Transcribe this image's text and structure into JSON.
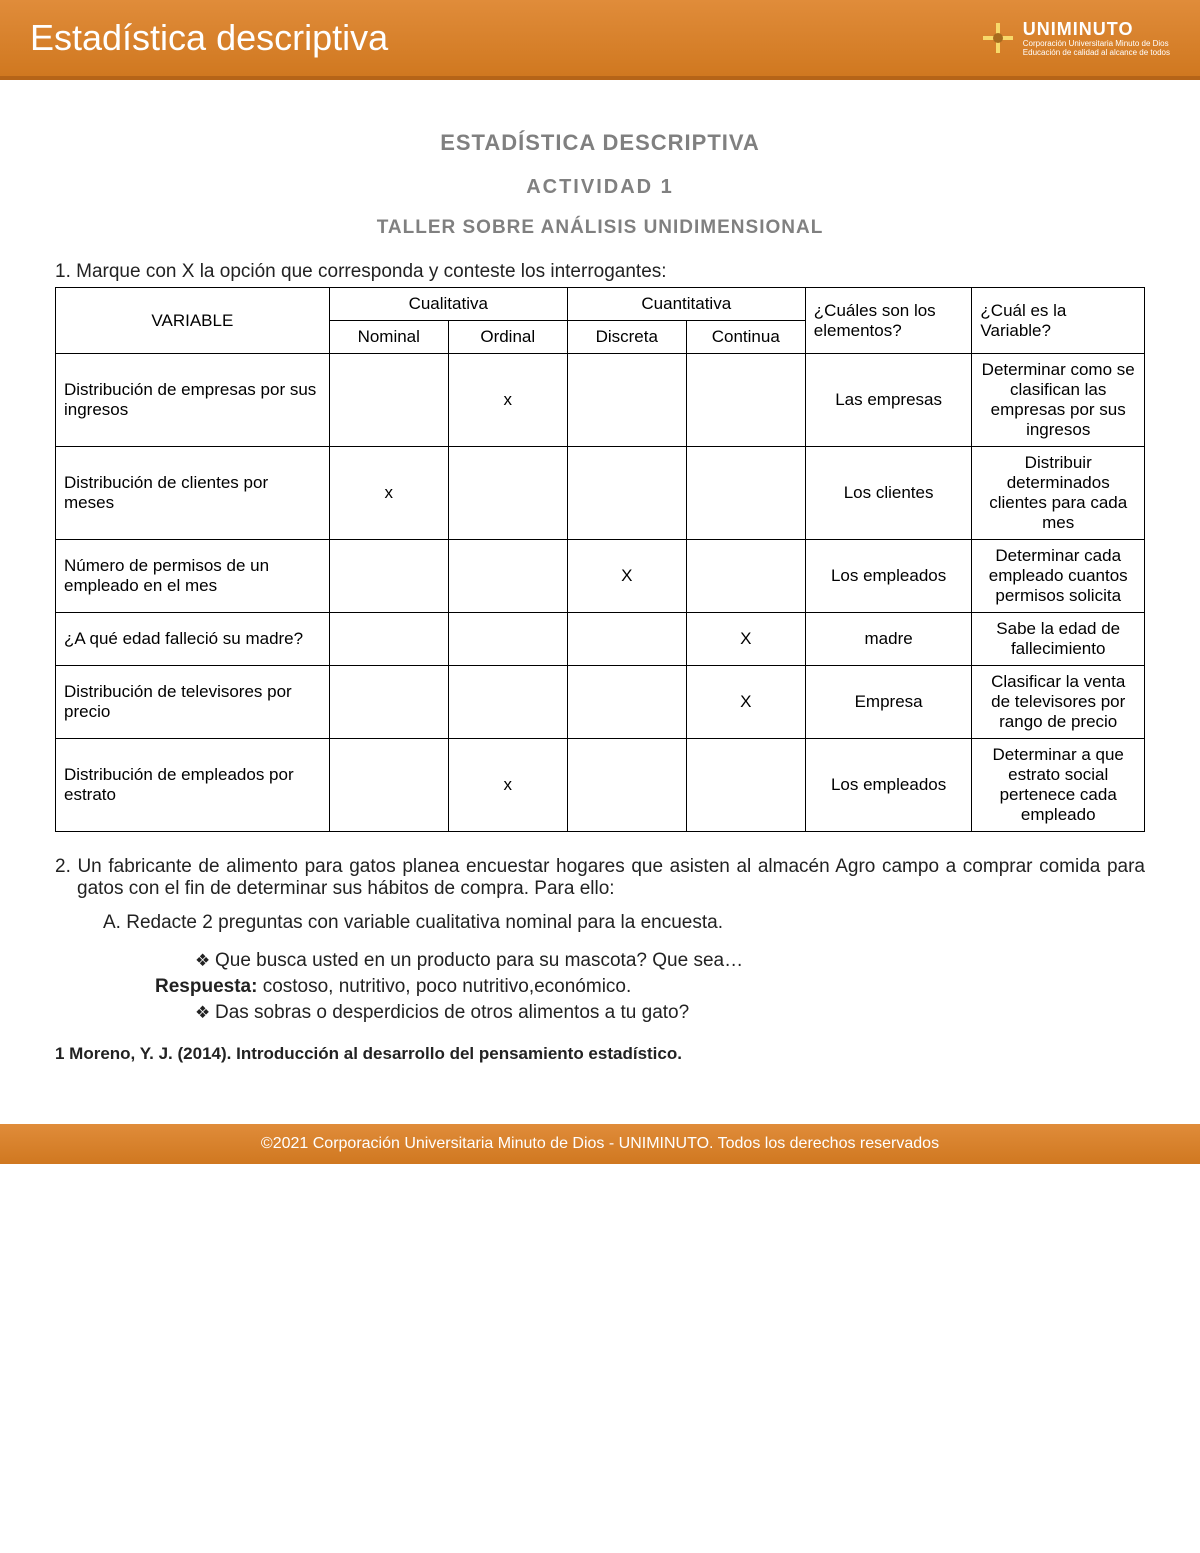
{
  "header": {
    "title": "Estadística descriptiva",
    "brand": "UNIMINUTO",
    "brand_sub1": "Corporación Universitaria Minuto de Dios",
    "brand_sub2": "Educación de calidad al alcance de todos"
  },
  "doc": {
    "title": "ESTADÍSTICA DESCRIPTIVA",
    "subtitle1": "ACTIVIDAD 1",
    "subtitle2": "TALLER SOBRE ANÁLISIS UNIDIMENSIONAL"
  },
  "q1_text": "1.  Marque con X la opción que corresponda y conteste los interrogantes:",
  "table": {
    "head_variable": "VARIABLE",
    "head_cual": "Cualitativa",
    "head_cuant": "Cuantitativa",
    "head_elementos": "¿Cuáles son los elementos?",
    "head_variable_q": "¿Cuál es la Variable?",
    "sub_nominal": "Nominal",
    "sub_ordinal": "Ordinal",
    "sub_discreta": "Discreta",
    "sub_continua": "Continua",
    "rows": [
      {
        "var": "Distribución de empresas por sus ingresos",
        "nominal": "",
        "ordinal": "x",
        "discreta": "",
        "continua": "",
        "elem": "Las empresas",
        "what": "Determinar como se clasifican las empresas por sus ingresos"
      },
      {
        "var": "Distribución de clientes por meses",
        "nominal": "x",
        "ordinal": "",
        "discreta": "",
        "continua": "",
        "elem": "Los clientes",
        "what": "Distribuir determinados clientes para cada mes"
      },
      {
        "var": "Número de permisos de un empleado en el mes",
        "nominal": "",
        "ordinal": "",
        "discreta": "X",
        "continua": "",
        "elem": "Los empleados",
        "what": "Determinar cada empleado cuantos permisos solicita"
      },
      {
        "var": "¿A qué edad falleció su madre?",
        "nominal": "",
        "ordinal": "",
        "discreta": "",
        "continua": "X",
        "elem": "madre",
        "what": "Sabe la edad de fallecimiento"
      },
      {
        "var": "Distribución de televisores por precio",
        "nominal": "",
        "ordinal": "",
        "discreta": "",
        "continua": "X",
        "elem": "Empresa",
        "what": "Clasificar la venta de televisores por rango de precio"
      },
      {
        "var": "Distribución de empleados por estrato",
        "nominal": "",
        "ordinal": "x",
        "discreta": "",
        "continua": "",
        "elem": "Los empleados",
        "what": "Determinar a que estrato social pertenece cada empleado"
      }
    ]
  },
  "q2_text": "2. Un fabricante de alimento para gatos planea encuestar hogares que asisten al almacén Agro campo a comprar comida para gatos con el fin de determinar sus hábitos de compra. Para ello:",
  "q2a_text": "A.  Redacte 2 preguntas con variable cualitativa nominal para la encuesta.",
  "bullet1": "Que busca usted en un producto para su mascota? Que sea…",
  "resp_label": "Respuesta:",
  "resp_text": " costoso, nutritivo, poco nutritivo,económico.",
  "bullet2": "Das sobras o desperdicios de otros alimentos a tu gato?",
  "ref_text": "1 Moreno, Y. J. (2014). Introducción al desarrollo del pensamiento estadístico.",
  "footer_text": "©2021 Corporación Universitaria Minuto de Dios - UNIMINUTO. Todos los derechos reservados",
  "colors": {
    "header_bg": "#d98430",
    "header_text": "#ffffff",
    "title_gray": "#808080",
    "border": "#000000"
  }
}
